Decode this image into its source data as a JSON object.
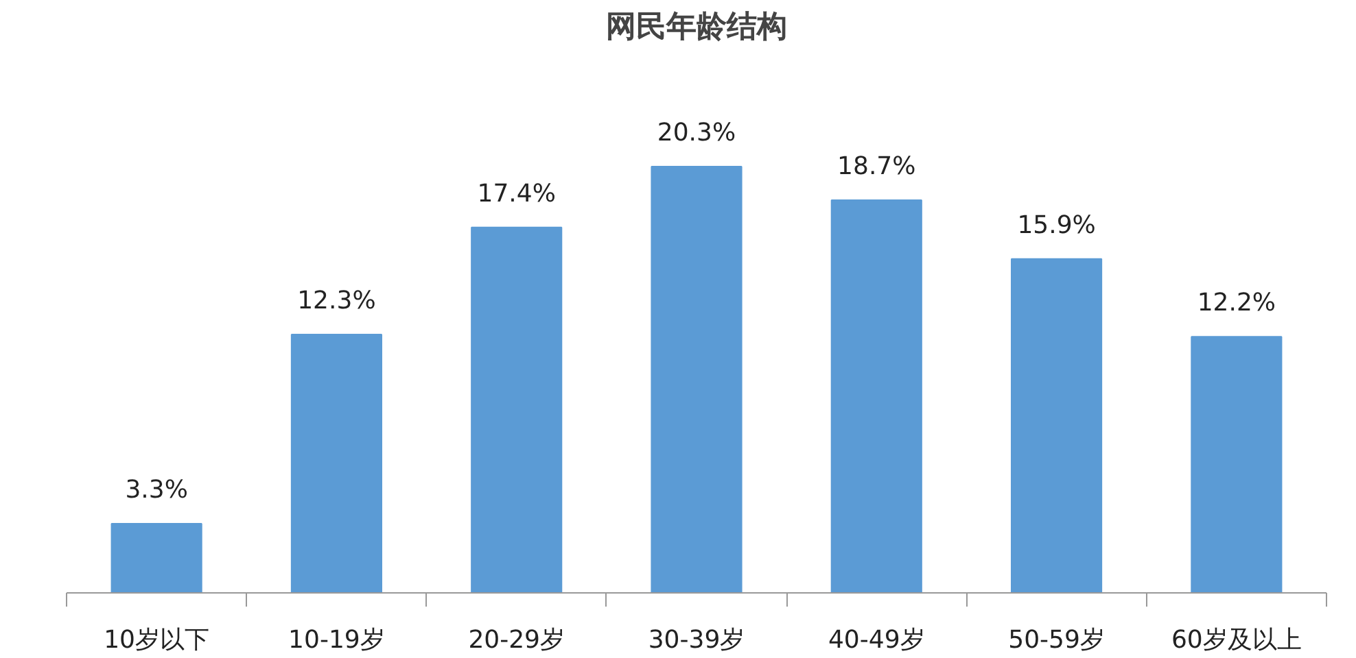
{
  "chart_data": {
    "type": "bar",
    "title": "网民年龄结构",
    "categories": [
      "10岁以下",
      "10-19岁",
      "20-29岁",
      "30-39岁",
      "40-49岁",
      "50-59岁",
      "60岁及以上"
    ],
    "values": [
      3.3,
      12.3,
      17.4,
      20.3,
      18.7,
      15.9,
      12.2
    ],
    "value_labels": [
      "3.3%",
      "12.3%",
      "17.4%",
      "20.3%",
      "18.7%",
      "15.9%",
      "12.2%"
    ],
    "color": "#5b9bd5",
    "grid": false
  }
}
